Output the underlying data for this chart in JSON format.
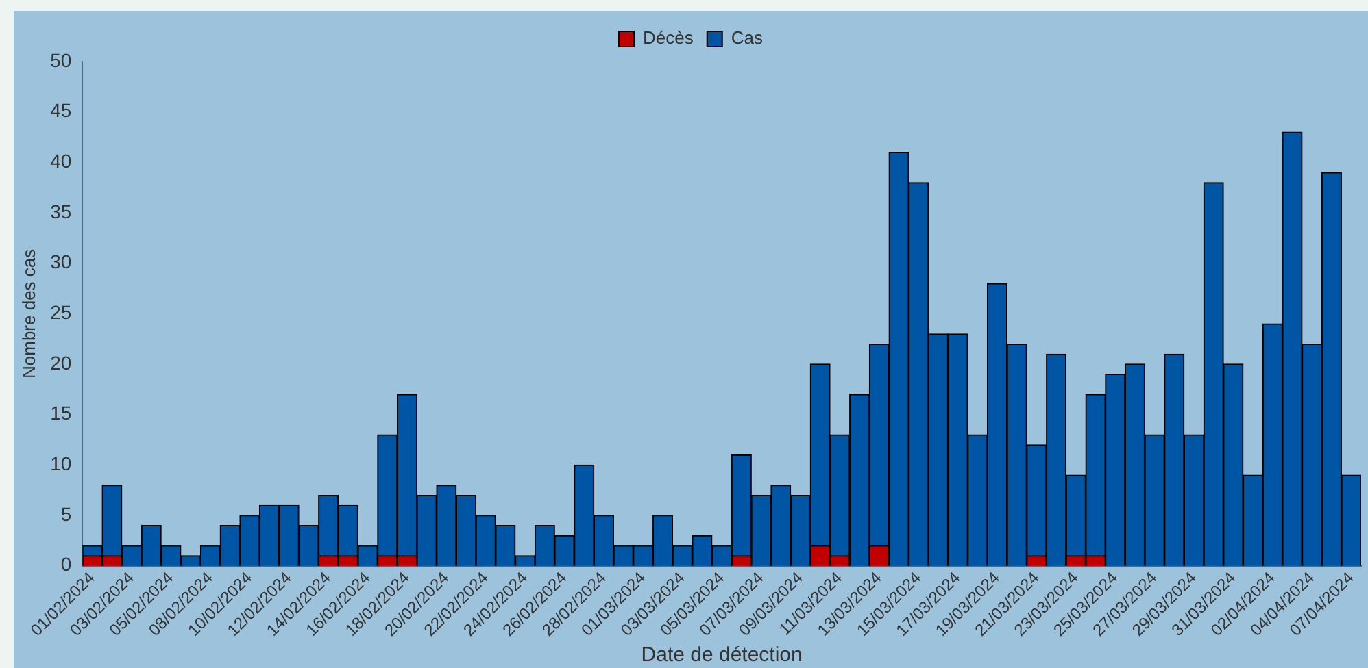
{
  "chart_data": {
    "type": "bar",
    "stacked": true,
    "xlabel": "Date de détection",
    "ylabel": "Nombre des cas",
    "legend": "top",
    "grid": false,
    "categories": [
      "01/02/2024",
      null,
      "03/02/2024",
      null,
      "05/02/2024",
      null,
      "08/02/2024",
      null,
      "10/02/2024",
      null,
      "12/02/2024",
      null,
      "14/02/2024",
      null,
      "16/02/2024",
      null,
      "18/02/2024",
      null,
      "20/02/2024",
      null,
      "22/02/2024",
      null,
      "24/02/2024",
      null,
      "26/02/2024",
      null,
      "28/02/2024",
      null,
      "01/03/2024",
      null,
      "03/03/2024",
      null,
      "05/03/2024",
      null,
      "07/03/2024",
      null,
      "09/03/2024",
      null,
      "11/03/2024",
      null,
      "13/03/2024",
      null,
      "15/03/2024",
      null,
      "17/03/2024",
      null,
      "19/03/2024",
      null,
      "21/03/2024",
      null,
      "23/03/2024",
      null,
      "25/03/2024",
      null,
      "27/03/2024",
      null,
      "29/03/2024",
      null,
      "31/03/2024",
      null,
      "02/04/2024",
      null,
      "04/04/2024",
      null,
      "07/04/2024"
    ],
    "series": [
      {
        "name": "Décès",
        "color": "#c00000",
        "values": [
          1,
          1,
          0,
          0,
          0,
          0,
          0,
          0,
          0,
          0,
          0,
          0,
          1,
          1,
          0,
          1,
          1,
          0,
          0,
          0,
          0,
          0,
          0,
          0,
          0,
          0,
          0,
          0,
          0,
          0,
          0,
          0,
          0,
          1,
          0,
          0,
          0,
          2,
          1,
          0,
          2,
          0,
          0,
          0,
          0,
          0,
          0,
          0,
          1,
          0,
          1,
          1,
          0,
          0,
          0,
          0,
          0,
          0,
          0,
          0,
          0,
          0,
          0,
          0,
          0
        ]
      },
      {
        "name": "Cas",
        "color": "#0055a5",
        "values": [
          1,
          7,
          2,
          4,
          2,
          1,
          2,
          4,
          5,
          6,
          6,
          4,
          6,
          5,
          2,
          12,
          16,
          7,
          8,
          7,
          5,
          4,
          1,
          4,
          3,
          10,
          5,
          2,
          2,
          5,
          2,
          3,
          2,
          10,
          7,
          8,
          7,
          18,
          12,
          17,
          20,
          41,
          38,
          23,
          23,
          13,
          28,
          22,
          11,
          21,
          8,
          16,
          19,
          20,
          13,
          21,
          13,
          38,
          20,
          9,
          24,
          43,
          22,
          39,
          9
        ]
      }
    ],
    "ylim": [
      0,
      50
    ],
    "yticks": [
      0,
      5,
      10,
      15,
      20,
      25,
      30,
      35,
      40,
      45,
      50
    ]
  }
}
